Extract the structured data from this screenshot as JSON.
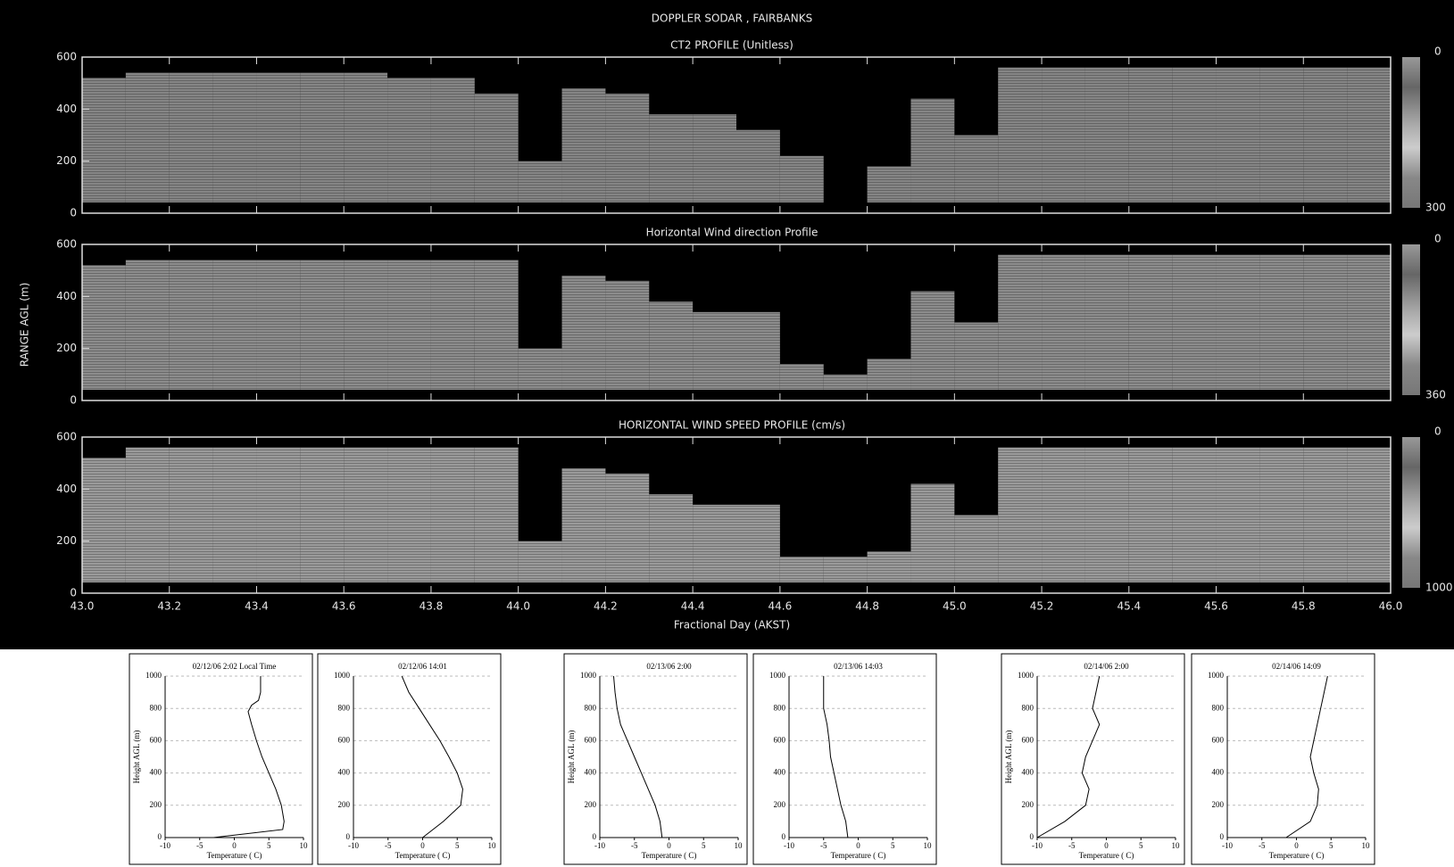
{
  "chart_data": [
    {
      "type": "sodar",
      "title": "DOPPLER SODAR , FAIRBANKS",
      "y_label": "RANGE AGL (m)",
      "x_label": "Fractional Day (AKST)",
      "xlim": [
        43,
        46
      ],
      "xticks": [
        {
          "value": 43,
          "label": "43.0"
        },
        43.2,
        43.4,
        43.6,
        43.8,
        {
          "value": 44,
          "label": "44.0"
        },
        44.2,
        44.4,
        44.6,
        44.8,
        {
          "value": 45,
          "label": "45.0"
        },
        45.2,
        45.4,
        45.6,
        45.8,
        {
          "value": 46,
          "label": "46.0"
        }
      ],
      "bins": [
        43.0,
        43.1,
        43.2,
        43.3,
        43.4,
        43.5,
        43.6,
        43.7,
        43.8,
        43.9,
        44.0,
        44.1,
        44.2,
        44.3,
        44.4,
        44.5,
        44.6,
        44.7,
        44.8,
        44.9,
        45.0,
        45.1,
        45.2,
        45.3,
        45.4,
        45.5,
        45.6,
        45.7,
        45.8,
        45.9,
        46.0
      ],
      "panels": [
        {
          "title": "CT2 PROFILE (Unitless)",
          "ylim": [
            0,
            600
          ],
          "yticks": [
            0,
            200,
            400,
            600
          ],
          "colorbar": [
            0,
            300
          ],
          "color": "#858585",
          "echo_top": [
            520,
            540,
            540,
            540,
            540,
            540,
            540,
            520,
            520,
            460,
            200,
            480,
            460,
            380,
            380,
            320,
            220,
            null,
            180,
            440,
            300,
            560,
            560,
            560,
            560,
            560,
            560,
            560,
            560,
            560
          ]
        },
        {
          "title": "Horizontal Wind direction Profile",
          "ylim": [
            0,
            600
          ],
          "yticks": [
            0,
            200,
            400,
            600
          ],
          "colorbar": [
            0,
            360
          ],
          "color": "#8c8c8c",
          "echo_top": [
            520,
            540,
            540,
            540,
            540,
            540,
            540,
            540,
            540,
            540,
            200,
            480,
            460,
            380,
            340,
            340,
            140,
            100,
            160,
            420,
            300,
            560,
            560,
            560,
            560,
            560,
            560,
            560,
            560,
            560
          ]
        },
        {
          "title": "HORIZONTAL WIND SPEED PROFILE (cm/s)",
          "ylim": [
            0,
            600
          ],
          "yticks": [
            0,
            200,
            400,
            600
          ],
          "colorbar": [
            0,
            1000
          ],
          "color": "#9a9a9a",
          "echo_top": [
            520,
            560,
            560,
            560,
            560,
            560,
            560,
            560,
            560,
            560,
            200,
            480,
            460,
            380,
            340,
            340,
            140,
            140,
            160,
            420,
            300,
            560,
            560,
            560,
            560,
            560,
            560,
            560,
            560,
            560
          ]
        }
      ]
    },
    {
      "type": "profile",
      "title": "02/12/06 2:02 Local Time",
      "y_label": "Height AGL (m)",
      "x_label": "Temperature ( C)",
      "xlim": [
        -10,
        10
      ],
      "xticks": [
        -10,
        -5,
        0,
        5,
        10
      ],
      "ylim": [
        0,
        1000
      ],
      "yticks": [
        0,
        200,
        400,
        600,
        800,
        1000
      ],
      "grid": true,
      "heights": [
        0,
        50,
        100,
        200,
        300,
        400,
        500,
        600,
        700,
        780,
        820,
        850,
        900,
        1000
      ],
      "temperatures": [
        -3,
        7,
        7.2,
        6.8,
        6,
        5,
        4,
        3.2,
        2.5,
        2,
        2.5,
        3.5,
        3.8,
        3.8
      ]
    },
    {
      "type": "profile",
      "title": "02/12/06 14:01",
      "x_label": "Temperature ( C)",
      "xlim": [
        -10,
        10
      ],
      "xticks": [
        -10,
        -5,
        0,
        5,
        10
      ],
      "ylim": [
        0,
        1000
      ],
      "yticks": [
        0,
        200,
        400,
        600,
        800,
        1000
      ],
      "grid": true,
      "heights": [
        0,
        100,
        200,
        300,
        400,
        500,
        600,
        700,
        800,
        900,
        1000
      ],
      "temperatures": [
        0,
        3,
        5.5,
        5.8,
        5,
        3.8,
        2.5,
        1,
        -0.5,
        -2,
        -3
      ]
    },
    {
      "type": "profile",
      "title": "02/13/06 2:00",
      "y_label": "Height AGL (m)",
      "x_label": "Temperature ( C)",
      "xlim": [
        -10,
        10
      ],
      "xticks": [
        -10,
        -5,
        0,
        5,
        10
      ],
      "ylim": [
        0,
        1000
      ],
      "yticks": [
        0,
        200,
        400,
        600,
        800,
        1000
      ],
      "grid": true,
      "heights": [
        0,
        100,
        200,
        300,
        400,
        500,
        600,
        700,
        800,
        900,
        1000
      ],
      "temperatures": [
        -1,
        -1.3,
        -2,
        -3,
        -4,
        -5,
        -6,
        -7,
        -7.5,
        -7.8,
        -8
      ]
    },
    {
      "type": "profile",
      "title": "02/13/06 14:03",
      "x_label": "Temperature ( C)",
      "xlim": [
        -10,
        10
      ],
      "xticks": [
        -10,
        -5,
        0,
        5,
        10
      ],
      "ylim": [
        0,
        1000
      ],
      "yticks": [
        0,
        200,
        400,
        600,
        800,
        1000
      ],
      "grid": true,
      "heights": [
        0,
        100,
        200,
        300,
        400,
        500,
        600,
        700,
        800,
        900,
        1000
      ],
      "temperatures": [
        -1.5,
        -1.8,
        -2.5,
        -3,
        -3.5,
        -4,
        -4.2,
        -4.5,
        -5,
        -5,
        -5
      ]
    },
    {
      "type": "profile",
      "title": "02/14/06 2:00",
      "y_label": "Height AGL (m)",
      "x_label": "Temperature ( C)",
      "xlim": [
        -10,
        10
      ],
      "xticks": [
        -10,
        -5,
        0,
        5,
        10
      ],
      "ylim": [
        0,
        1000
      ],
      "yticks": [
        0,
        200,
        400,
        600,
        800,
        1000
      ],
      "grid": true,
      "heights": [
        0,
        100,
        200,
        300,
        400,
        500,
        600,
        700,
        800,
        900,
        1000
      ],
      "temperatures": [
        -10,
        -6,
        -3,
        -2.5,
        -3.5,
        -3,
        -2,
        -1,
        -2,
        -1.5,
        -1
      ]
    },
    {
      "type": "profile",
      "title": "02/14/06 14:09",
      "x_label": "Temperature ( C)",
      "xlim": [
        -10,
        10
      ],
      "xticks": [
        -10,
        -5,
        0,
        5,
        10
      ],
      "ylim": [
        0,
        1000
      ],
      "yticks": [
        0,
        200,
        400,
        600,
        800,
        1000
      ],
      "grid": true,
      "heights": [
        0,
        100,
        200,
        300,
        400,
        500,
        600,
        700,
        800,
        900,
        1000
      ],
      "temperatures": [
        -1.5,
        2,
        3,
        3.2,
        2.5,
        2,
        2.5,
        3,
        3.5,
        4,
        4.5
      ]
    }
  ]
}
